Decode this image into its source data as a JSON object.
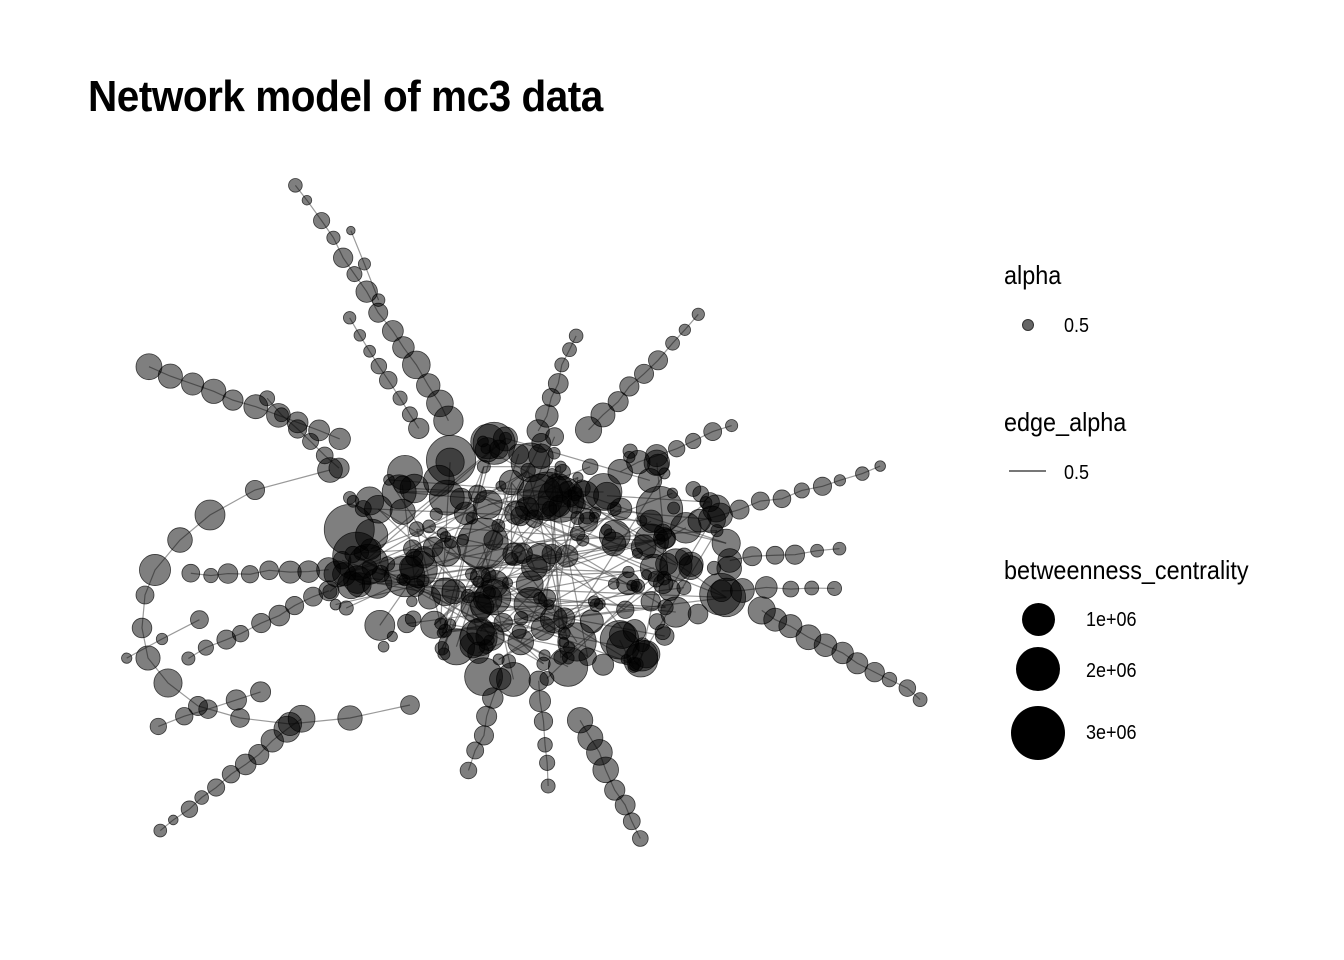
{
  "title": "Network model of mc3 data",
  "legend": {
    "alpha": {
      "title": "alpha",
      "label": "0.5",
      "value": 0.5
    },
    "edge_alpha": {
      "title": "edge_alpha",
      "label": "0.5",
      "value": 0.5
    },
    "betweenness_centrality": {
      "title": "betweenness_centrality",
      "items": [
        {
          "label": "1e+06",
          "value": 1000000
        },
        {
          "label": "2e+06",
          "value": 2000000
        },
        {
          "label": "3e+06",
          "value": 3000000
        }
      ]
    }
  },
  "colors": {
    "node": "#000000",
    "edge": "#555555",
    "background": "#ffffff"
  }
}
